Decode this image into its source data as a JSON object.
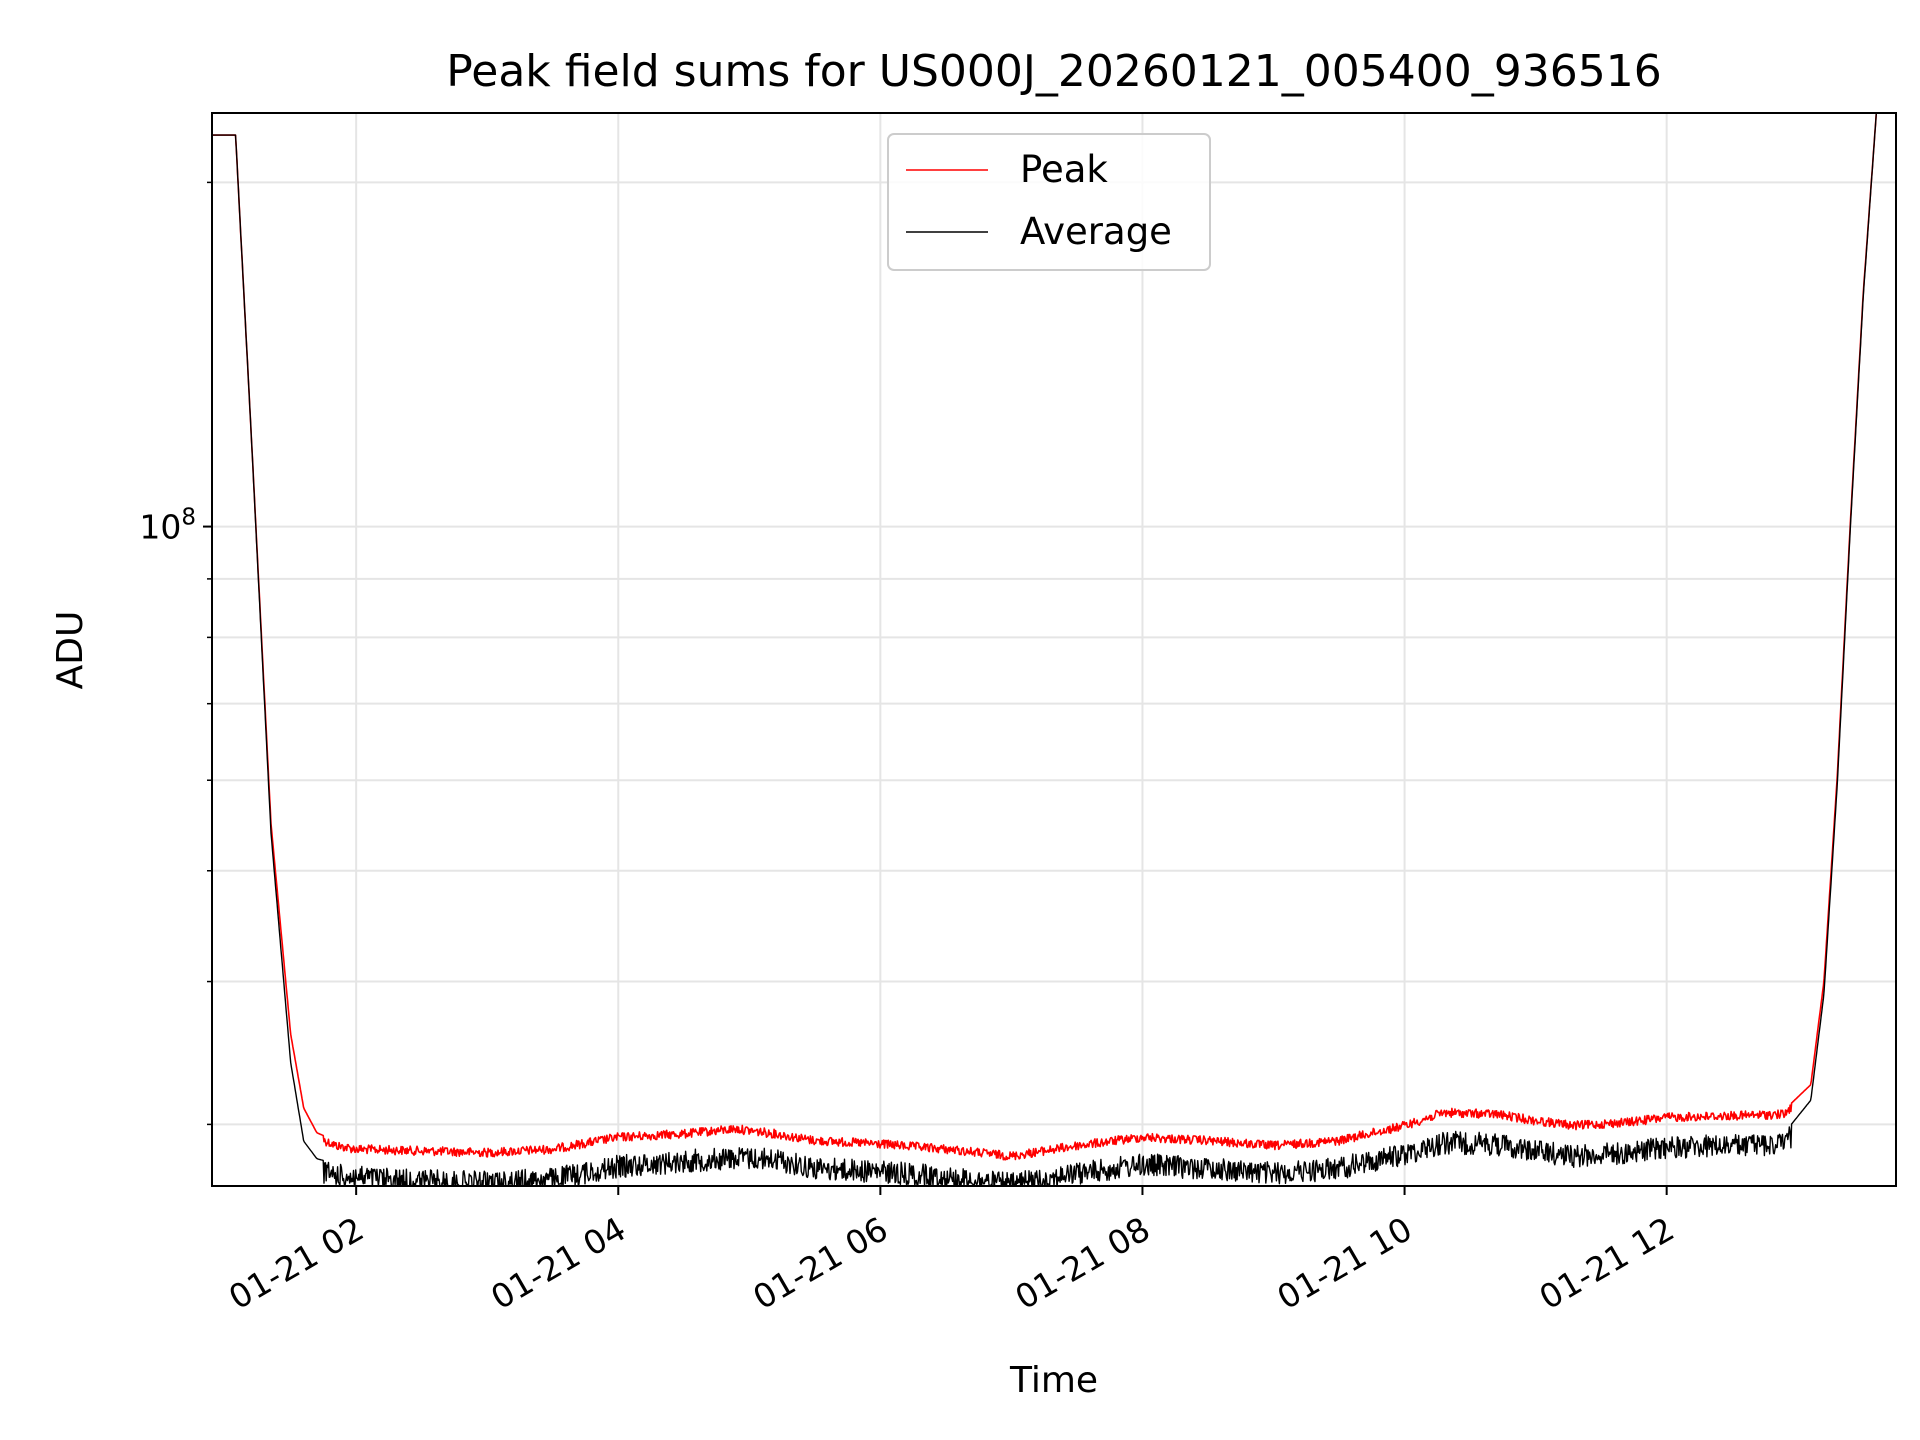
{
  "chart_data": {
    "type": "line",
    "title": "Peak field sums for US000J_20260121_005400_936516",
    "xlabel": "Time",
    "ylabel": "ADU",
    "yscale": "log",
    "grid": true,
    "legend_location": "upper-center",
    "xlim_hours": [
      0.9,
      13.75
    ],
    "ylim": [
      26500000,
      230000000
    ],
    "x_ticks": [
      {
        "hour": 2,
        "label": "01-21 02"
      },
      {
        "hour": 4,
        "label": "01-21 04"
      },
      {
        "hour": 6,
        "label": "01-21 06"
      },
      {
        "hour": 8,
        "label": "01-21 08"
      },
      {
        "hour": 10,
        "label": "01-21 10"
      },
      {
        "hour": 12,
        "label": "01-21 12"
      }
    ],
    "y_major_ticks": [
      {
        "value": 100000000,
        "base": "10",
        "exponent": "8"
      }
    ],
    "y_minor_tick_values": [
      30000000,
      40000000,
      50000000,
      60000000,
      70000000,
      80000000,
      90000000,
      200000000
    ],
    "series": [
      {
        "name": "Peak",
        "color": "#ff0000",
        "x_hours": [
          0.9,
          1.08,
          1.2,
          1.35,
          1.5,
          1.6,
          1.7,
          1.85,
          2.0,
          2.5,
          3.0,
          3.5,
          4.0,
          4.5,
          4.9,
          5.2,
          5.5,
          6.0,
          6.5,
          7.0,
          7.5,
          8.0,
          8.5,
          9.0,
          9.5,
          10.0,
          10.3,
          10.7,
          11.0,
          11.3,
          11.7,
          12.0,
          12.5,
          12.9,
          13.1,
          13.2,
          13.3,
          13.4,
          13.5,
          13.6
        ],
        "values": [
          220000000,
          220000000,
          120000000,
          55000000,
          36000000,
          31000000,
          29500000,
          29000000,
          28800000,
          28700000,
          28600000,
          28800000,
          29500000,
          29700000,
          30000000,
          29700000,
          29300000,
          29100000,
          28800000,
          28400000,
          29000000,
          29500000,
          29300000,
          29000000,
          29300000,
          30200000,
          31000000,
          30900000,
          30500000,
          30200000,
          30400000,
          30700000,
          30800000,
          30900000,
          32500000,
          40000000,
          60000000,
          100000000,
          160000000,
          230000000
        ]
      },
      {
        "name": "Average",
        "color": "#000000",
        "x_hours": [
          0.9,
          1.08,
          1.2,
          1.35,
          1.5,
          1.6,
          1.7,
          1.85,
          2.0,
          2.5,
          3.0,
          3.5,
          4.0,
          4.5,
          4.9,
          5.2,
          5.5,
          6.0,
          6.5,
          7.0,
          7.5,
          8.0,
          8.5,
          9.0,
          9.5,
          10.0,
          10.3,
          10.7,
          11.0,
          11.3,
          11.7,
          12.0,
          12.5,
          12.9,
          13.1,
          13.2,
          13.3,
          13.4,
          13.5,
          13.6
        ],
        "values": [
          220000000,
          220000000,
          120000000,
          54000000,
          34000000,
          29000000,
          28000000,
          27700000,
          27600000,
          27400000,
          27300000,
          27500000,
          28200000,
          28500000,
          28700000,
          28600000,
          28100000,
          27900000,
          27600000,
          27200000,
          27800000,
          28300000,
          28100000,
          27800000,
          28100000,
          28900000,
          29600000,
          29500000,
          29100000,
          28800000,
          29000000,
          29300000,
          29400000,
          29500000,
          31500000,
          39000000,
          59000000,
          99000000,
          159000000,
          230000000
        ]
      }
    ]
  }
}
